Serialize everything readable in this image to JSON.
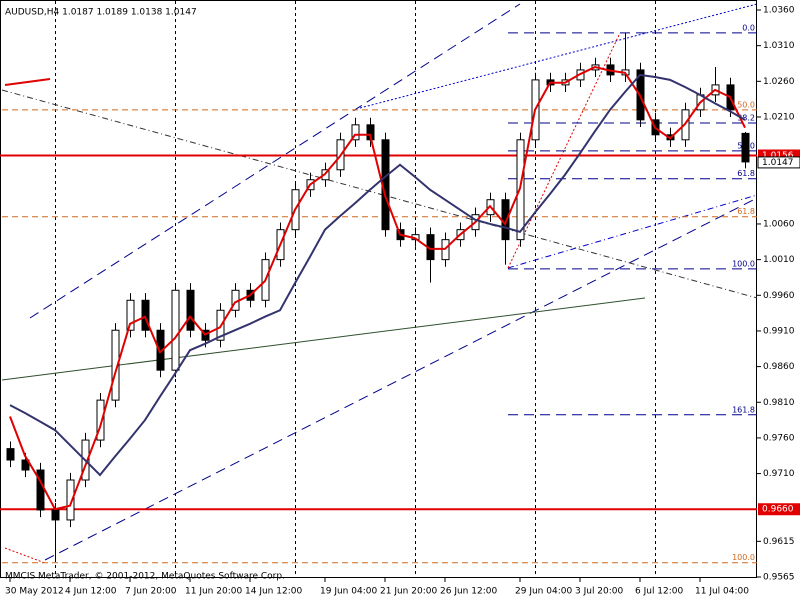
{
  "chart_data": {
    "type": "candlestick",
    "title": "AUDUSD,H4  1.0187 1.0189 1.0138 1.0147",
    "footer": "MMCIS MetaTrader, © 2001-2012, MetaQuotes Software Corp.",
    "categories": [
      "30 May 2012",
      null,
      null,
      null,
      "4 Jun 12:00",
      null,
      null,
      null,
      "7 Jun 20:00",
      null,
      null,
      null,
      "11 Jun 20:00",
      null,
      null,
      null,
      "14 Jun 12:00",
      null,
      null,
      null,
      null,
      "19 Jun 04:00",
      null,
      null,
      null,
      "21 Jun 20:00",
      null,
      null,
      null,
      "26 Jun 12:00",
      null,
      null,
      null,
      null,
      "29 Jun 04:00",
      null,
      null,
      null,
      "3 Jul 20:00",
      null,
      null,
      null,
      "6 Jul 12:00",
      null,
      null,
      null,
      "11 Jul 04:00",
      null,
      null,
      null
    ],
    "open": [
      0.9745,
      0.9729,
      0.9715,
      0.9659,
      0.9645,
      0.9701,
      0.9757,
      0.9813,
      0.9911,
      0.9953,
      0.9911,
      0.9855,
      0.9967,
      0.9911,
      0.9897,
      0.9939,
      0.9967,
      0.9953,
      1.001,
      1.0052,
      1.0108,
      1.0122,
      1.0136,
      1.0178,
      1.0199,
      1.0178,
      1.0052,
      1.0038,
      1.0045,
      1.001,
      1.0038,
      1.0052,
      1.0073,
      1.0094,
      1.0038,
      1.0178,
      1.0262,
      1.0255,
      1.0262,
      1.0276,
      1.0283,
      1.0269,
      1.0276,
      1.0206,
      1.0185,
      1.0178,
      1.022,
      1.0241,
      1.0255,
      1.0187
    ],
    "high": [
      0.9755,
      0.9739,
      0.9725,
      0.9669,
      0.9711,
      0.9767,
      0.9823,
      0.9921,
      0.9963,
      0.9963,
      0.9921,
      0.9977,
      0.9977,
      0.9921,
      0.9949,
      0.9977,
      0.9977,
      1.002,
      1.0062,
      1.0118,
      1.0132,
      1.0146,
      1.0188,
      1.0209,
      1.0209,
      1.0188,
      1.0062,
      1.0055,
      1.0055,
      1.0048,
      1.0062,
      1.0083,
      1.0104,
      1.0104,
      1.0188,
      1.0272,
      1.0272,
      1.0272,
      1.0286,
      1.0293,
      1.0293,
      1.0328,
      1.0286,
      1.0216,
      1.0195,
      1.023,
      1.0251,
      1.028,
      1.0265,
      1.0189
    ],
    "low": [
      0.9719,
      0.9705,
      0.9649,
      0.959,
      0.9635,
      0.9691,
      0.9747,
      0.9803,
      0.9901,
      0.9901,
      0.9845,
      0.9845,
      0.9901,
      0.9887,
      0.9887,
      0.9929,
      0.9943,
      0.9943,
      1.0,
      1.0042,
      1.0098,
      1.0112,
      1.0126,
      1.0168,
      1.0168,
      1.0042,
      1.0028,
      1.0028,
      0.9978,
      1.0,
      1.0028,
      1.0042,
      1.0063,
      1.0003,
      1.0028,
      1.0168,
      1.0245,
      1.0245,
      1.0252,
      1.0266,
      1.0259,
      1.0259,
      1.0196,
      1.0175,
      1.0168,
      1.0168,
      1.021,
      1.0231,
      1.021,
      1.0138
    ],
    "close": [
      0.9729,
      0.9715,
      0.9659,
      0.9645,
      0.9701,
      0.9757,
      0.9813,
      0.9911,
      0.9953,
      0.9911,
      0.9855,
      0.9967,
      0.9911,
      0.9897,
      0.9939,
      0.9967,
      0.9953,
      1.001,
      1.0052,
      1.0108,
      1.0122,
      1.0136,
      1.0178,
      1.0199,
      1.0178,
      1.0052,
      1.0038,
      1.0045,
      1.001,
      1.0038,
      1.0052,
      1.0073,
      1.0094,
      1.0038,
      1.0178,
      1.0262,
      1.0255,
      1.0262,
      1.0276,
      1.0283,
      1.0269,
      1.0276,
      1.0206,
      1.0185,
      1.0178,
      1.022,
      1.0241,
      1.0255,
      1.022,
      1.0147
    ],
    "series": [
      {
        "color": "#e00000",
        "values": [
          0.979,
          0.9735,
          0.97,
          0.966,
          0.9665,
          0.972,
          0.9775,
          0.985,
          0.992,
          0.993,
          0.988,
          0.99,
          0.993,
          0.9905,
          0.9915,
          0.995,
          0.996,
          0.998,
          1.003,
          1.008,
          1.0115,
          1.013,
          1.0155,
          1.0185,
          1.0185,
          1.01,
          1.0045,
          1.004,
          1.0025,
          1.0025,
          1.0045,
          1.0062,
          1.0085,
          1.006,
          1.011,
          1.022,
          1.0258,
          1.0258,
          1.027,
          1.028,
          1.0275,
          1.0272,
          1.024,
          1.0195,
          1.018,
          1.02,
          1.023,
          1.0248,
          1.0238,
          1.0195
        ]
      },
      {
        "color": "#33336e",
        "values": [
          0.9806,
          0.9795,
          0.9783,
          0.9771,
          0.975,
          0.9729,
          0.9708,
          0.9734,
          0.9759,
          0.9785,
          0.9818,
          0.985,
          0.9883,
          0.9892,
          0.9902,
          0.9911,
          0.992,
          0.993,
          0.9939,
          0.9977,
          1.0014,
          1.0052,
          1.0071,
          1.0089,
          1.0108,
          1.0126,
          1.0143,
          1.0126,
          1.0108,
          1.0094,
          1.008,
          1.0066,
          1.006,
          1.0055,
          1.0049,
          1.0076,
          1.0102,
          1.0129,
          1.0159,
          1.019,
          1.022,
          1.0245,
          1.0269,
          1.0266,
          1.0262,
          1.0252,
          1.0241,
          1.0229,
          1.0218,
          1.0206
        ]
      }
    ],
    "ylim": [
      0.9565,
      1.036
    ],
    "yticks": [
      {
        "value": 1.036,
        "label": "1.0360"
      },
      {
        "value": 1.031,
        "label": "1.0310"
      },
      {
        "value": 1.026,
        "label": "1.0260"
      },
      {
        "value": 1.021,
        "label": "1.0210"
      },
      {
        "value": 1.006,
        "label": "1.0060"
      },
      {
        "value": 1.001,
        "label": "1.0010"
      },
      {
        "value": 0.996,
        "label": "0.9960"
      },
      {
        "value": 0.991,
        "label": "0.9910"
      },
      {
        "value": 0.986,
        "label": "0.9860"
      },
      {
        "value": 0.981,
        "label": "0.9810"
      },
      {
        "value": 0.976,
        "label": "0.9760"
      },
      {
        "value": 0.971,
        "label": "0.9710"
      },
      {
        "value": 0.9615,
        "label": "0.9615"
      },
      {
        "value": 0.9565,
        "label": "0.9565"
      }
    ],
    "price_lines": [
      {
        "value": 1.0156,
        "label": "1.0156",
        "color": "#e00000"
      },
      {
        "value": 0.966,
        "label": "0.9660",
        "color": "#e00000"
      }
    ],
    "current_price": {
      "value": 1.0147,
      "label": "1.0147"
    },
    "fibo": [
      {
        "color": "#00008b",
        "high": 1.0328,
        "low": 0.9997,
        "levels": [
          {
            "value": 0,
            "label": "0.0"
          },
          38.2,
          {
            "value": 50,
            "label": "50.0"
          },
          61.8,
          {
            "value": 100,
            "label": "100.0"
          },
          161.8
        ]
      },
      {
        "color": "#d2691e",
        "high": 1.0855,
        "low": 0.9585,
        "levels": [
          {
            "value": 50,
            "label": "50.0"
          },
          61.8,
          {
            "value": 100,
            "label": "100.0"
          }
        ]
      }
    ],
    "grid": false
  }
}
